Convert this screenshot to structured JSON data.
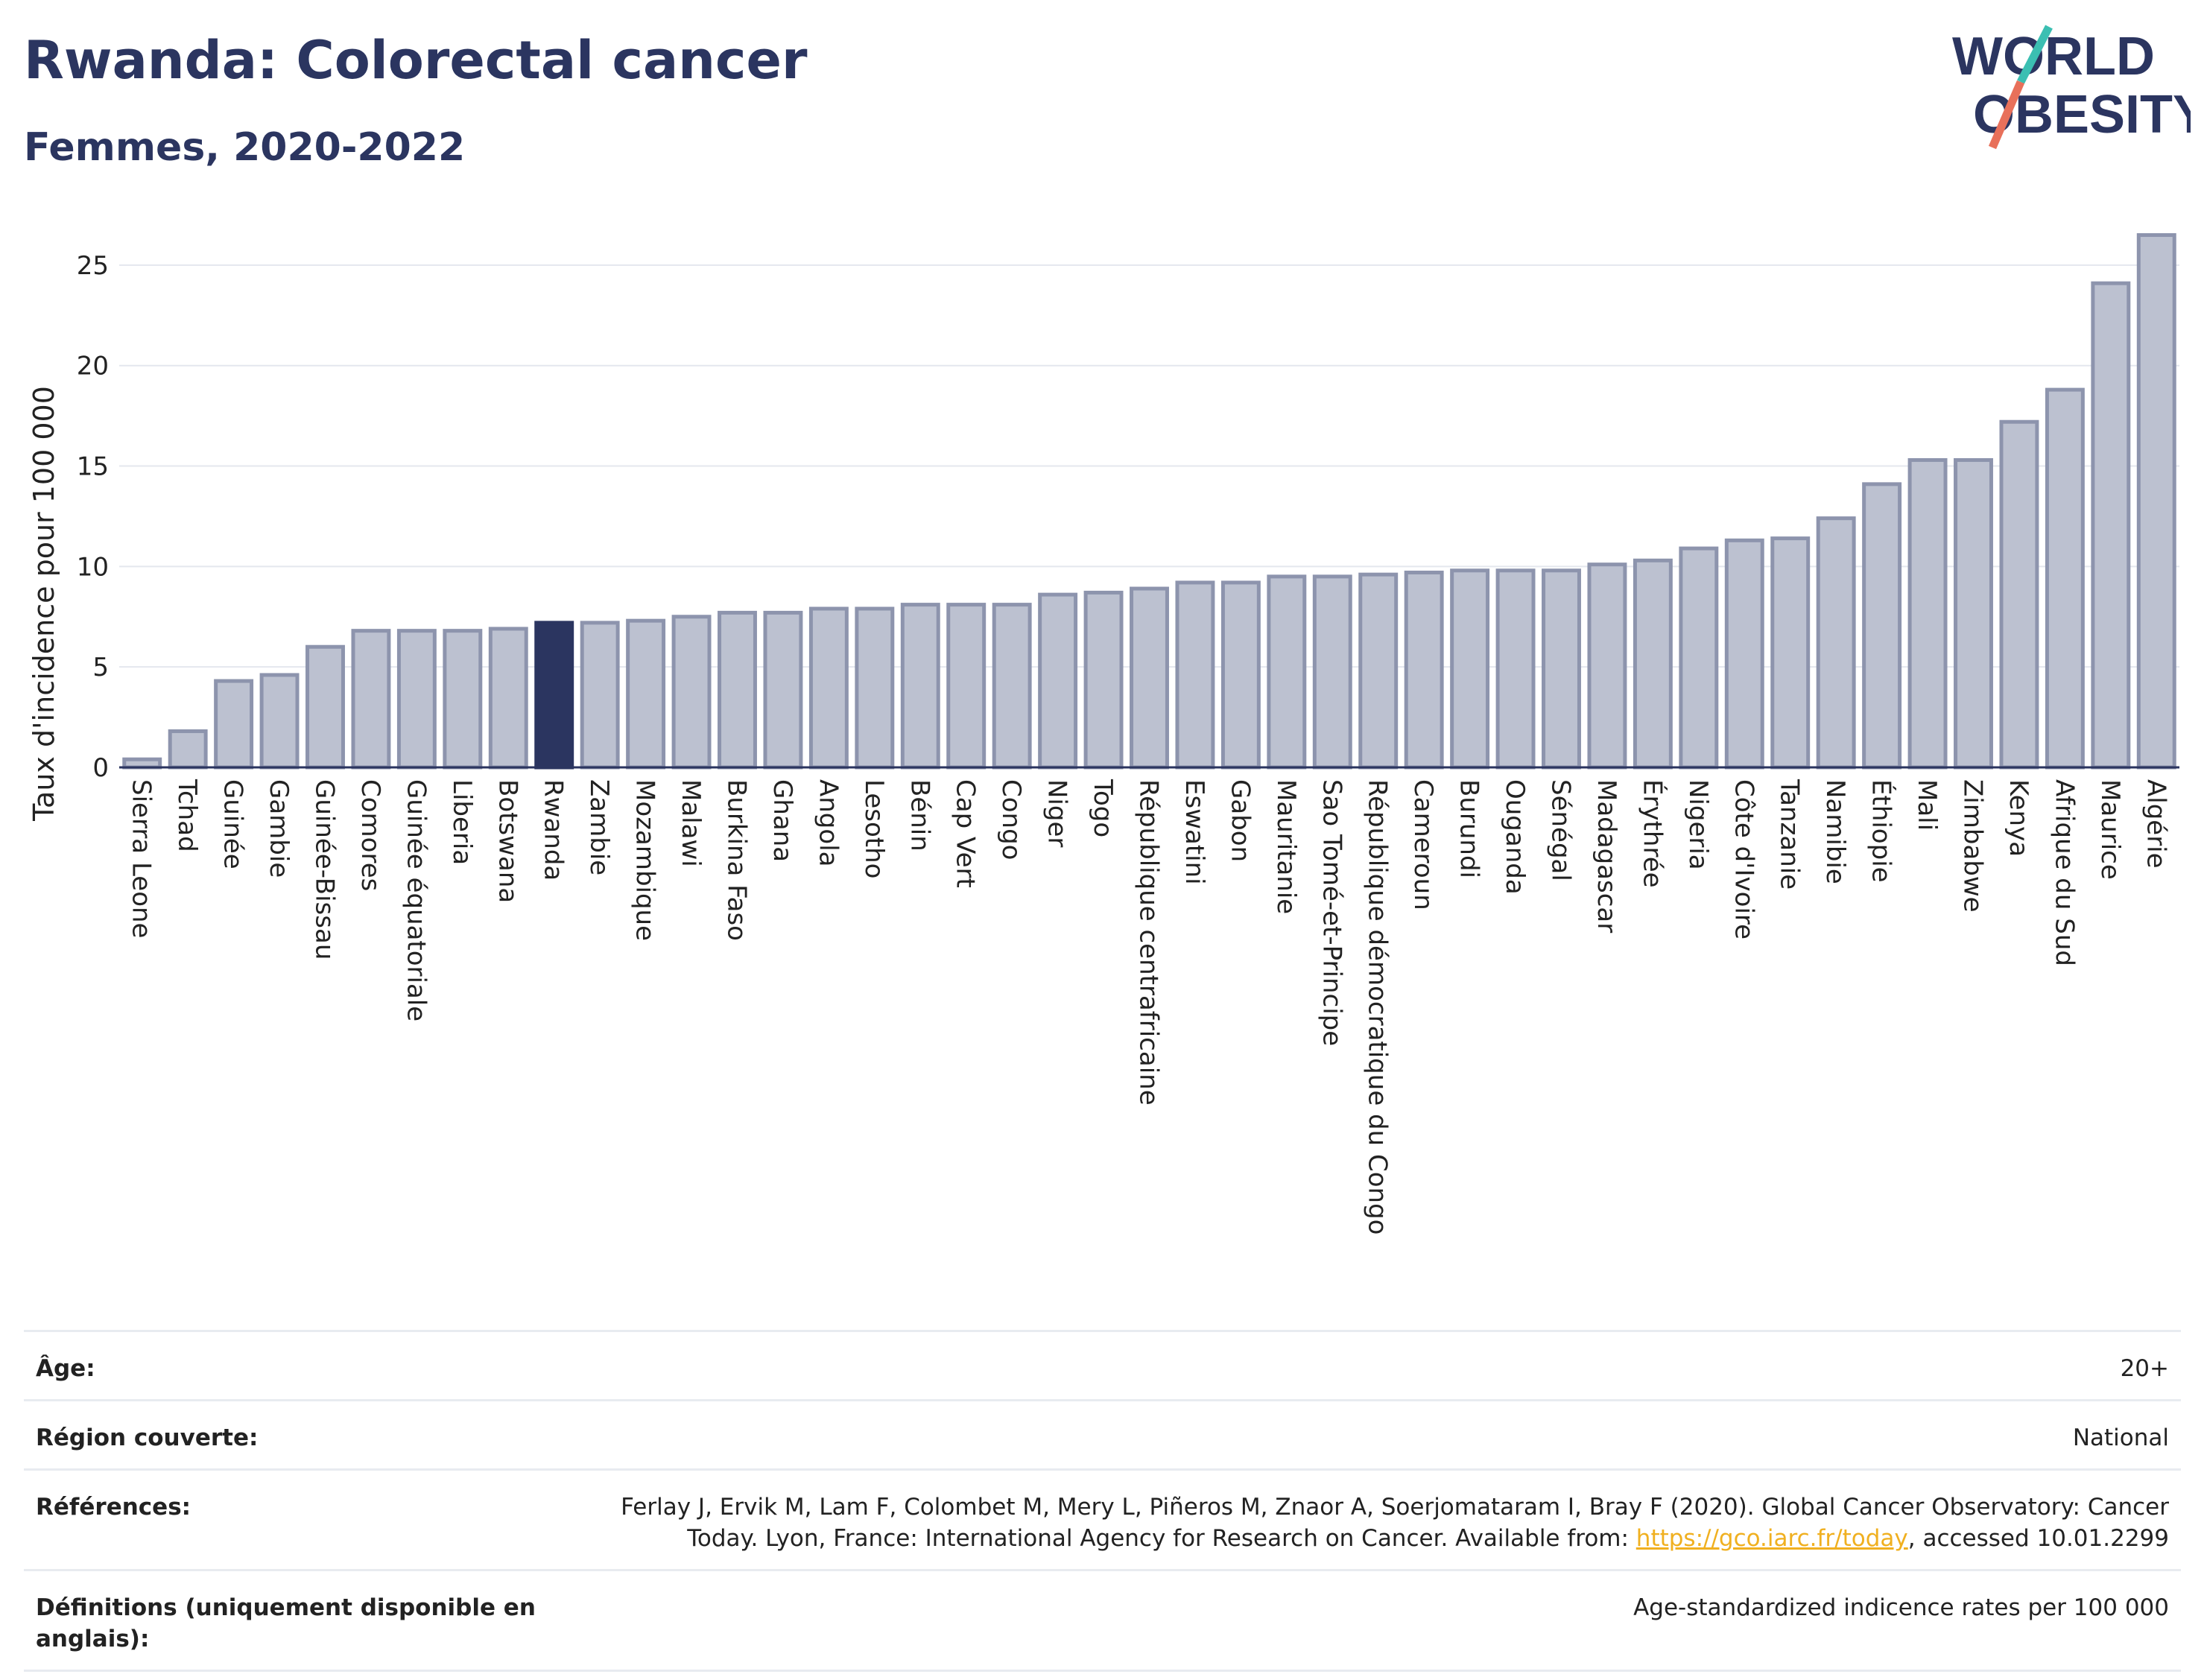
{
  "header": {
    "title": "Rwanda: Colorectal cancer",
    "subtitle": "Femmes, 2020-2022",
    "logo_line1": "WORLD",
    "logo_line2": "OBESITY"
  },
  "colors": {
    "navy": "#2b3560",
    "bar_fill": "#bcc1d0",
    "bar_stroke": "#8d94ad",
    "highlight": "#2b3560",
    "link": "#f0b020",
    "logo_teal": "#3bbfb2",
    "logo_coral": "#e8705a"
  },
  "chart_data": {
    "type": "bar",
    "ylabel": "Taux d'incidence pour 100 000",
    "ylim": [
      0,
      27
    ],
    "yticks": [
      0,
      5,
      10,
      15,
      20,
      25
    ],
    "highlight": "Rwanda",
    "categories": [
      "Sierra Leone",
      "Tchad",
      "Guinée",
      "Gambie",
      "Guinée-Bissau",
      "Comores",
      "Guinée équatoriale",
      "Liberia",
      "Botswana",
      "Rwanda",
      "Zambie",
      "Mozambique",
      "Malawi",
      "Burkina Faso",
      "Ghana",
      "Angola",
      "Lesotho",
      "Bénin",
      "Cap Vert",
      "Congo",
      "Niger",
      "Togo",
      "République centrafricaine",
      "Eswatini",
      "Gabon",
      "Mauritanie",
      "Sao Tomé-et-Principe",
      "République démocratique du Congo",
      "Cameroun",
      "Burundi",
      "Ouganda",
      "Sénégal",
      "Madagascar",
      "Érythrée",
      "Nigeria",
      "Côte d'Ivoire",
      "Tanzanie",
      "Namibie",
      "Éthiopie",
      "Mali",
      "Zimbabwe",
      "Kenya",
      "Afrique du Sud",
      "Maurice",
      "Algérie"
    ],
    "values": [
      0.4,
      1.8,
      4.3,
      4.6,
      6.0,
      6.8,
      6.8,
      6.8,
      6.9,
      7.2,
      7.2,
      7.3,
      7.5,
      7.7,
      7.7,
      7.9,
      7.9,
      8.1,
      8.1,
      8.1,
      8.6,
      8.7,
      8.9,
      9.2,
      9.2,
      9.5,
      9.5,
      9.6,
      9.7,
      9.8,
      9.8,
      9.8,
      10.1,
      10.3,
      10.9,
      11.3,
      11.4,
      12.4,
      14.1,
      15.3,
      15.3,
      17.2,
      18.8,
      24.1,
      26.5
    ]
  },
  "meta": {
    "age_label": "Âge:",
    "age_value": "20+",
    "region_label": "Région couverte:",
    "region_value": "National",
    "refs_label": "Références:",
    "refs_text": "Ferlay J, Ervik M, Lam F, Colombet M, Mery L, Piñeros M, Znaor A, Soerjomataram I, Bray F (2020). Global Cancer Observatory: Cancer Today. Lyon, France: International Agency for Research on Cancer. Available from: ",
    "refs_link": "https://gco.iarc.fr/today",
    "refs_suffix": ", accessed 10.01.2299",
    "defs_label": "Définitions (uniquement disponible en anglais):",
    "defs_value": "Age-standardized indicence rates per 100 000"
  }
}
